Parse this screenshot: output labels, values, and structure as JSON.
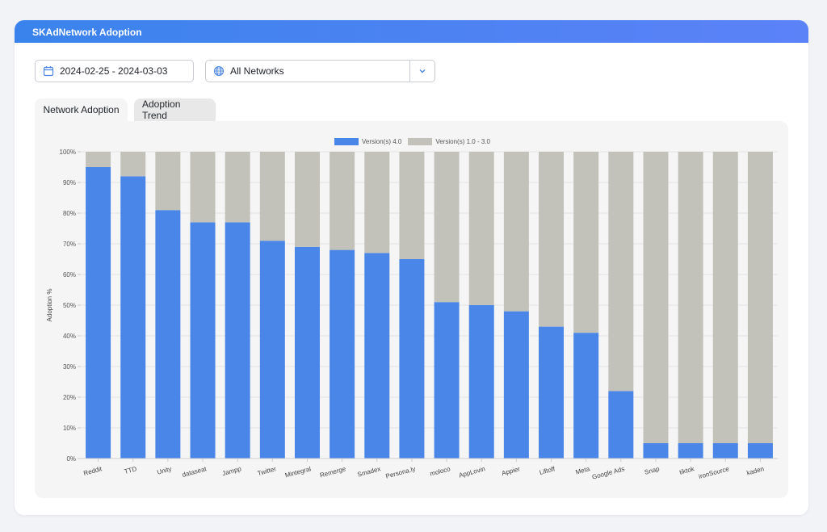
{
  "header": {
    "title": "SKAdNetwork Adoption"
  },
  "filters": {
    "date_range": "2024-02-25 - 2024-03-03",
    "network": "All Networks"
  },
  "tabs": [
    {
      "label": "Network Adoption",
      "active": true
    },
    {
      "label": "Adoption Trend",
      "active": false
    }
  ],
  "colors": {
    "v4": "#4a86e8",
    "v1_3": "#c2c2bb",
    "header": "#4a86f0"
  },
  "chart_data": {
    "type": "bar",
    "stacked": true,
    "ylabel": "Adoption %",
    "ylim": [
      0,
      100
    ],
    "yticks": [
      "0%",
      "10%",
      "20%",
      "30%",
      "40%",
      "50%",
      "60%",
      "70%",
      "80%",
      "90%",
      "100%"
    ],
    "categories": [
      "Reddit",
      "TTD",
      "Unity",
      "dataseat",
      "Jampp",
      "Twitter",
      "Mintegral",
      "Remerge",
      "Smadex",
      "Persona.ly",
      "moloco",
      "AppLovin",
      "Appier",
      "Liftoff",
      "Meta",
      "Google Ads",
      "Snap",
      "tiktok",
      "ironSource",
      "kaden"
    ],
    "series": [
      {
        "name": "Version(s) 4.0",
        "values": [
          95,
          92,
          81,
          77,
          77,
          71,
          69,
          68,
          67,
          65,
          51,
          50,
          48,
          43,
          41,
          22,
          5,
          5,
          5,
          5
        ]
      },
      {
        "name": "Version(s) 1.0 - 3.0",
        "values": [
          5,
          8,
          19,
          23,
          23,
          29,
          31,
          32,
          33,
          35,
          49,
          50,
          52,
          57,
          59,
          78,
          95,
          95,
          95,
          95
        ]
      }
    ],
    "legend": "top",
    "grid": true
  }
}
